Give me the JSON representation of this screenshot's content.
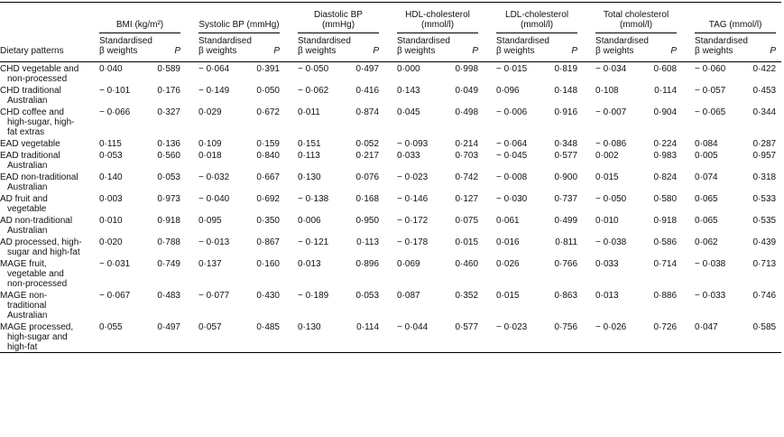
{
  "table": {
    "row_header": "Dietary patterns",
    "groups": [
      "BMI (kg/m²)",
      "Systolic BP (mmHg)",
      "Diastolic BP (mmHg)",
      "HDL-cholesterol (mmol/l)",
      "LDL-cholesterol (mmol/l)",
      "Total cholesterol (mmol/l)",
      "TAG (mmol/l)"
    ],
    "beta_label": "Standardised β weights",
    "p_label": "P",
    "rows": [
      {
        "label": "CHD vegetable and non-processed",
        "cells": [
          "0·040",
          "0·589",
          "− 0·064",
          "0·391",
          "− 0·050",
          "0·497",
          "0·000",
          "0·998",
          "− 0·015",
          "0·819",
          "− 0·034",
          "0·608",
          "− 0·060",
          "0·422"
        ]
      },
      {
        "label": "CHD traditional Australian",
        "cells": [
          "− 0·101",
          "0·176",
          "− 0·149",
          "0·050",
          "− 0·062",
          "0·416",
          "0·143",
          "0·049",
          "0·096",
          "0·148",
          "0·108",
          "0·114",
          "− 0·057",
          "0·453"
        ]
      },
      {
        "label": "CHD coffee and high-sugar, high-fat extras",
        "cells": [
          "− 0·066",
          "0·327",
          "0·029",
          "0·672",
          "0·011",
          "0·874",
          "0·045",
          "0·498",
          "− 0·006",
          "0·916",
          "− 0·007",
          "0·904",
          "− 0·065",
          "0·344"
        ]
      },
      {
        "label": "EAD vegetable",
        "cells": [
          "0·115",
          "0·136",
          "0·109",
          "0·159",
          "0·151",
          "0·052",
          "− 0·093",
          "0·214",
          "− 0·064",
          "0·348",
          "− 0·086",
          "0·224",
          "0·084",
          "0·287"
        ]
      },
      {
        "label": "EAD traditional Australian",
        "cells": [
          "0·053",
          "0·560",
          "0·018",
          "0·840",
          "0·113",
          "0·217",
          "0·033",
          "0·703",
          "− 0·045",
          "0·577",
          "0·002",
          "0·983",
          "0·005",
          "0·957"
        ]
      },
      {
        "label": "EAD non-traditional Australian",
        "cells": [
          "0·140",
          "0·053",
          "− 0·032",
          "0·667",
          "0·130",
          "0·076",
          "− 0·023",
          "0·742",
          "− 0·008",
          "0·900",
          "0·015",
          "0·824",
          "0·074",
          "0·318"
        ]
      },
      {
        "label": "AD fruit and vegetable",
        "cells": [
          "0·003",
          "0·973",
          "− 0·040",
          "0·692",
          "− 0·138",
          "0·168",
          "− 0·146",
          "0·127",
          "− 0·030",
          "0·737",
          "− 0·050",
          "0·580",
          "0·065",
          "0·533"
        ]
      },
      {
        "label": "AD non-traditional Australian",
        "cells": [
          "0·010",
          "0·918",
          "0·095",
          "0·350",
          "0·006",
          "0·950",
          "− 0·172",
          "0·075",
          "0·061",
          "0·499",
          "0·010",
          "0·918",
          "0·065",
          "0·535"
        ]
      },
      {
        "label": "AD processed, high-sugar and high-fat",
        "cells": [
          "0·020",
          "0·788",
          "− 0·013",
          "0·867",
          "− 0·121",
          "0·113",
          "− 0·178",
          "0·015",
          "0·016",
          "0·811",
          "− 0·038",
          "0·586",
          "0·062",
          "0·439"
        ]
      },
      {
        "label": "MAGE fruit, vegetable and non-processed",
        "cells": [
          "− 0·031",
          "0·749",
          "0·137",
          "0·160",
          "0·013",
          "0·896",
          "0·069",
          "0·460",
          "0·026",
          "0·766",
          "0·033",
          "0·714",
          "− 0·038",
          "0·713"
        ]
      },
      {
        "label": "MAGE non-traditional Australian",
        "cells": [
          "− 0·067",
          "0·483",
          "− 0·077",
          "0·430",
          "− 0·189",
          "0·053",
          "0·087",
          "0·352",
          "0·015",
          "0·863",
          "0·013",
          "0·886",
          "− 0·033",
          "0·746"
        ]
      },
      {
        "label": "MAGE processed, high-sugar and high-fat",
        "cells": [
          "0·055",
          "0·497",
          "0·057",
          "0·485",
          "0·130",
          "0·114",
          "− 0·044",
          "0·577",
          "− 0·023",
          "0·756",
          "− 0·026",
          "0·726",
          "0·047",
          "0·585"
        ]
      }
    ]
  }
}
